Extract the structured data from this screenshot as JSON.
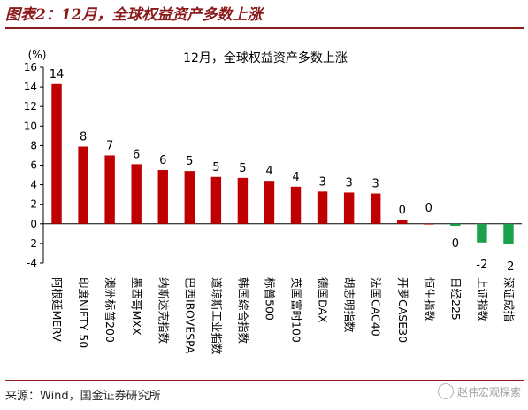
{
  "header": {
    "figure_title": "图表2：12月，全球权益资产多数上涨"
  },
  "footer": {
    "source": "来源：Wind，国金证券研究所",
    "watermark": "赵伟宏观探索"
  },
  "colors": {
    "accent": "#8b1a1a",
    "positive": "#c00000",
    "negative": "#19a24a"
  },
  "chart_data": {
    "type": "bar",
    "title": "12月，全球权益资产多数上涨",
    "ylabel": "(%)",
    "xlabel": "",
    "ylim": [
      -4,
      16
    ],
    "yticks": [
      -4,
      -2,
      0,
      2,
      4,
      6,
      8,
      10,
      12,
      14,
      16
    ],
    "grid": false,
    "categories": [
      "阿根廷MERV",
      "印度NIFTY 50",
      "澳洲标普200",
      "墨西哥MXX",
      "纳斯达克指数",
      "巴西IBOVESPA",
      "道琼斯工业指数",
      "韩国综合指数",
      "标普500",
      "英国富时100",
      "德国DAX",
      "胡志明指数",
      "法国CAC40",
      "开罗CASE30",
      "恒生指数",
      "日经225",
      "上证指数",
      "深证成指"
    ],
    "values": [
      14.3,
      7.9,
      7.0,
      6.1,
      5.5,
      5.4,
      4.8,
      4.7,
      4.4,
      3.8,
      3.3,
      3.2,
      3.1,
      0.4,
      0.0,
      -0.2,
      -1.9,
      -2.1
    ],
    "data_labels": [
      "14",
      "8",
      "7",
      "6",
      "6",
      "5",
      "5",
      "5",
      "4",
      "4",
      "3",
      "3",
      "3",
      "0",
      "0",
      "0",
      "-2",
      "-2"
    ]
  }
}
